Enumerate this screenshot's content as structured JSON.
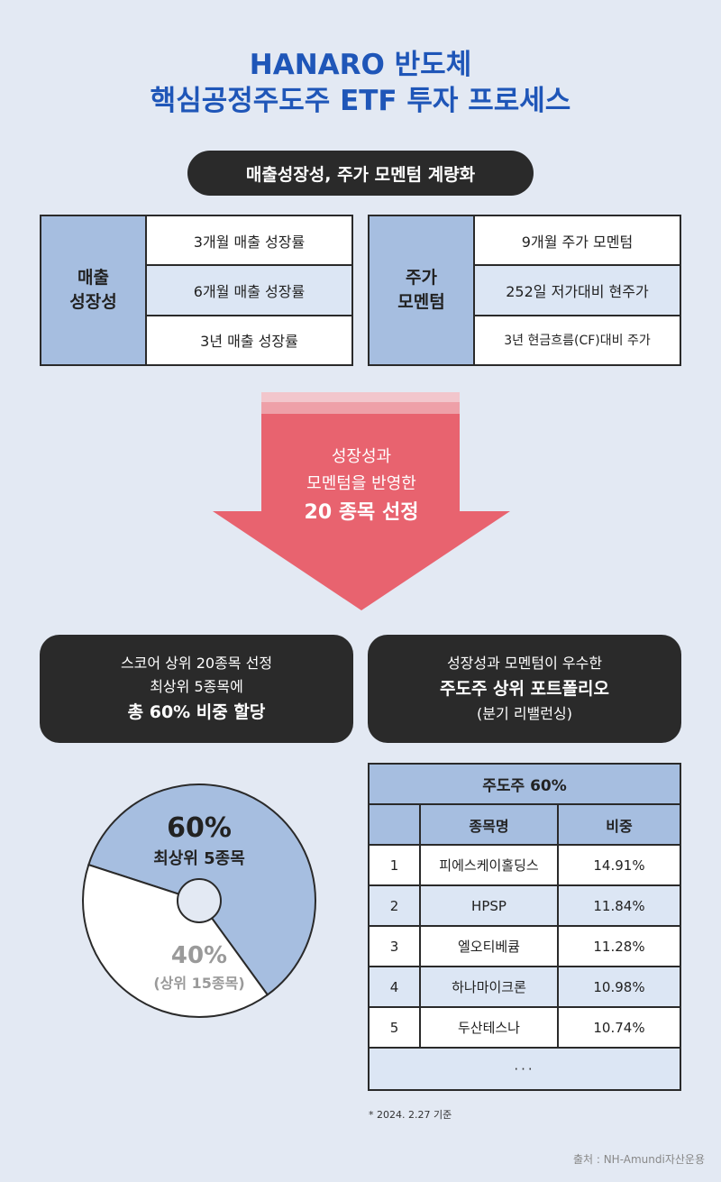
{
  "title": {
    "line1": "HANARO 반도체",
    "line2": "핵심공정주도주 ETF 투자 프로세스"
  },
  "quantify_pill": "매출성장성, 주가 모멘텀 계량화",
  "growth_box": {
    "head_line1": "매출",
    "head_line2": "성장성",
    "rows": [
      "3개월 매출 성장률",
      "6개월 매출 성장률",
      "3년 매출 성장률"
    ]
  },
  "momentum_box": {
    "head_line1": "주가",
    "head_line2": "모멘텀",
    "rows": [
      "9개월 주가 모멘텀",
      "252일 저가대비 현주가",
      "3년 현금흐름(CF)대비 주가"
    ]
  },
  "arrow": {
    "line1": "성장성과",
    "line2": "모멘텀을 반영한",
    "line3": "20 종목 선정"
  },
  "left_card": {
    "line1": "스코어 상위 20종목 선정",
    "line2": "최상위 5종목에",
    "line3": "총 60% 비중 할당"
  },
  "right_card": {
    "line1": "성장성과 모멘텀이 우수한",
    "line2": "주도주 상위 포트폴리오",
    "line3": "(분기 리밸런싱)"
  },
  "colors": {
    "accent_blue": "#1f56b8",
    "header_blue": "#a6bee0",
    "arrow_red": "#e8636f",
    "dark": "#2a2a2a"
  },
  "chart_data": {
    "type": "pie",
    "values": [
      60,
      40
    ],
    "slices": [
      {
        "percent": "60%",
        "label": "최상위 5종목",
        "color": "#a6bee0"
      },
      {
        "percent": "40%",
        "label": "(상위 15종목)",
        "color": "#ffffff"
      }
    ]
  },
  "table": {
    "title": "주도주 60%",
    "columns": [
      "",
      "종목명",
      "비중"
    ],
    "rows": [
      {
        "rank": "1",
        "name": "피에스케이홀딩스",
        "weight": "14.91%"
      },
      {
        "rank": "2",
        "name": "HPSP",
        "weight": "11.84%"
      },
      {
        "rank": "3",
        "name": "엘오티베큠",
        "weight": "11.28%"
      },
      {
        "rank": "4",
        "name": "하나마이크론",
        "weight": "10.98%"
      },
      {
        "rank": "5",
        "name": "두산테스나",
        "weight": "10.74%"
      }
    ],
    "more": "···"
  },
  "note": "* 2024. 2.27 기준",
  "source": "출처 : NH-Amundi자산운용"
}
